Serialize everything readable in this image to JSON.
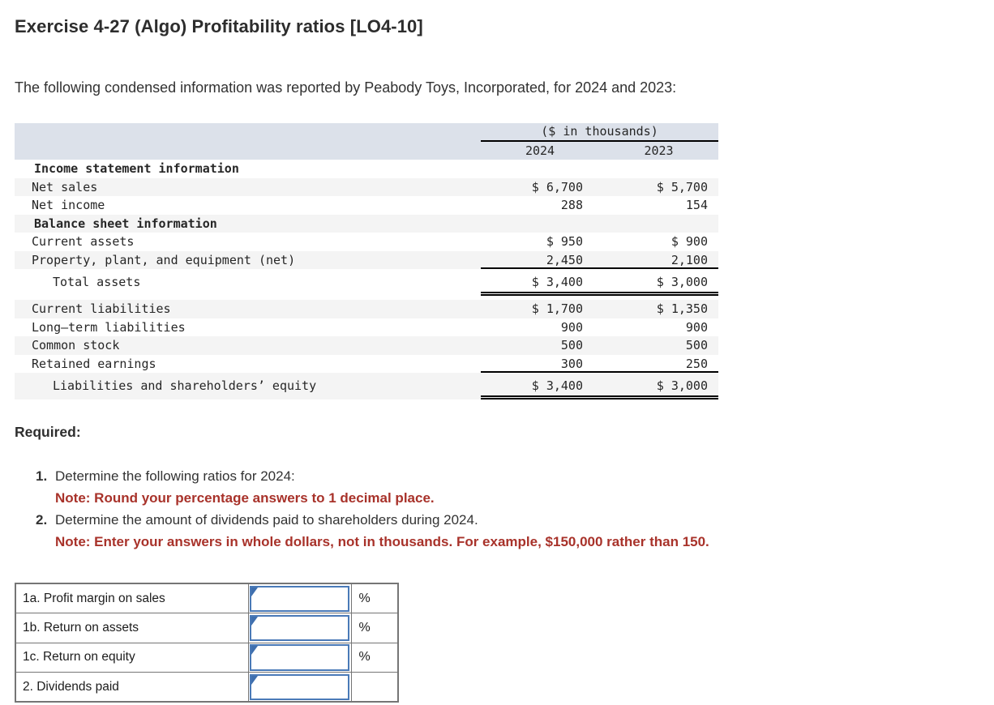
{
  "page": {
    "title": "Exercise 4-27 (Algo) Profitability ratios [LO4-10]",
    "intro": "The following condensed information was reported by Peabody Toys, Incorporated, for 2024 and 2023:"
  },
  "financial_table": {
    "units_header": "($ in thousands)",
    "col_2024": "2024",
    "col_2023": "2023",
    "rows": [
      {
        "label": "Income statement information",
        "v2024": "",
        "v2023": ""
      },
      {
        "label": "Net sales",
        "v2024": "$ 6,700",
        "v2023": "$ 5,700"
      },
      {
        "label": "Net income",
        "v2024": "288",
        "v2023": "154"
      },
      {
        "label": "Balance sheet information",
        "v2024": "",
        "v2023": ""
      },
      {
        "label": "Current assets",
        "v2024": "$ 950",
        "v2023": "$ 900"
      },
      {
        "label": "Property, plant, and equipment (net)",
        "v2024": "2,450",
        "v2023": "2,100"
      },
      {
        "label": "Total assets",
        "v2024": "$ 3,400",
        "v2023": "$ 3,000"
      },
      {
        "label": "Current liabilities",
        "v2024": "$ 1,700",
        "v2023": "$ 1,350"
      },
      {
        "label": "Long–term liabilities",
        "v2024": "900",
        "v2023": "900"
      },
      {
        "label": "Common stock",
        "v2024": "500",
        "v2023": "500"
      },
      {
        "label": "Retained earnings",
        "v2024": "300",
        "v2023": "250"
      },
      {
        "label": "Liabilities and shareholders’ equity",
        "v2024": "$ 3,400",
        "v2023": "$ 3,000"
      }
    ]
  },
  "required": {
    "heading": "Required:",
    "items": [
      {
        "number": "1.",
        "text": "Determine the following ratios for 2024:",
        "note": "Note: Round your percentage answers to 1 decimal place."
      },
      {
        "number": "2.",
        "text": "Determine the amount of dividends paid to shareholders during 2024.",
        "note": "Note: Enter your answers in whole dollars, not in thousands. For example, $150,000 rather than 150."
      }
    ]
  },
  "answer_table": {
    "rows": [
      {
        "label": "1a. Profit margin on sales",
        "value": "",
        "suffix": "%"
      },
      {
        "label": "1b. Return on assets",
        "value": "",
        "suffix": "%"
      },
      {
        "label": "1c. Return on equity",
        "value": "",
        "suffix": "%"
      },
      {
        "label": "2. Dividends paid",
        "value": "",
        "suffix": ""
      }
    ]
  },
  "colors": {
    "accent_blue": "#4a7ab8",
    "flag_blue": "#3f6fae",
    "note_red": "#a8322a",
    "table_header_bg": "#dce1ea",
    "row_stripe": "#f4f4f4",
    "grid_border": "#757575"
  }
}
